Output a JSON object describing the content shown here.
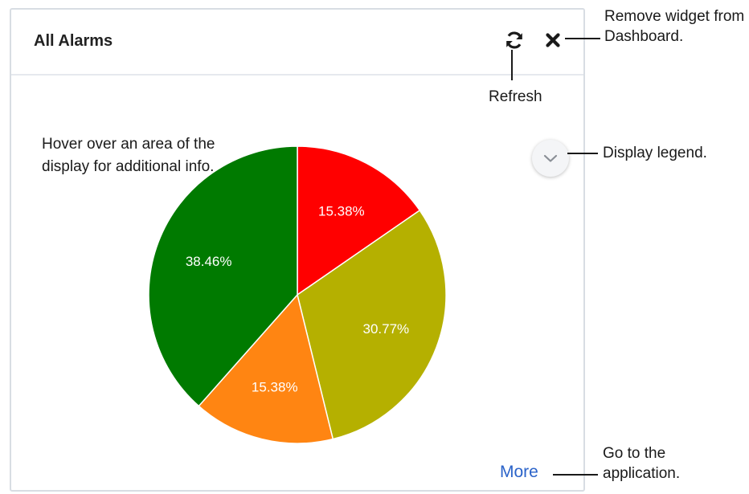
{
  "widget": {
    "title": "All Alarms",
    "hover_note": "Hover over an area of the display for additional info.",
    "more_label": "More"
  },
  "icons": {
    "refresh": "refresh-icon",
    "close": "close-icon",
    "legend_toggle": "chevron-down-icon"
  },
  "callouts": {
    "remove_widget": "Remove widget from Dashboard.",
    "refresh": "Refresh",
    "display_legend": "Display legend.",
    "go_to_application": "Go to the application."
  },
  "colors": {
    "red": "#ff0000",
    "olive": "#b5b000",
    "orange": "#ff8512",
    "green": "#007a00",
    "link": "#2b63c9"
  },
  "chart_data": {
    "type": "pie",
    "slices": [
      {
        "label": "15.38%",
        "value": 15.38,
        "color": "#ff0000"
      },
      {
        "label": "30.77%",
        "value": 30.77,
        "color": "#b5b000"
      },
      {
        "label": "15.38%",
        "value": 15.38,
        "color": "#ff8512"
      },
      {
        "label": "38.46%",
        "value": 38.46,
        "color": "#007a00"
      }
    ],
    "start": "top",
    "direction": "clockwise"
  }
}
